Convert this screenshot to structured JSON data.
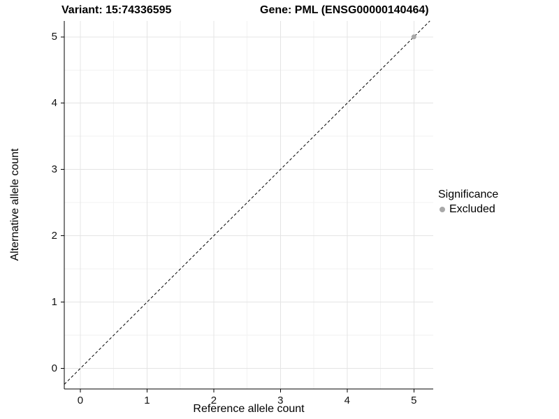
{
  "title": {
    "variant": "Variant: 15:74336595",
    "gene": "Gene: PML (ENSG00000140464)"
  },
  "chart_data": {
    "type": "scatter",
    "xlabel": "Reference allele count",
    "ylabel": "Alternative allele count",
    "xlim": [
      -0.24,
      5.29
    ],
    "ylim": [
      -0.31,
      5.24
    ],
    "x_ticks": [
      0,
      1,
      2,
      3,
      4,
      5
    ],
    "y_ticks": [
      0,
      1,
      2,
      3,
      4,
      5
    ],
    "grid": true,
    "minor_grid": true,
    "reference_line": {
      "type": "abline",
      "slope": 1,
      "intercept": 0,
      "style": "dashed",
      "color": "#000000"
    },
    "series": [
      {
        "name": "Excluded",
        "color": "#A8A8A8",
        "points": [
          {
            "x": 5,
            "y": 5
          }
        ]
      }
    ],
    "legend": {
      "title": "Significance",
      "position": "right",
      "items": [
        {
          "label": "Excluded",
          "color": "#A8A8A8"
        }
      ]
    },
    "colors": {
      "background": "#FFFFFF",
      "axis_line": "#000000",
      "major_grid": "#E4E4E4",
      "minor_grid": "#F2F2F2",
      "tick_text": "#111111"
    }
  }
}
